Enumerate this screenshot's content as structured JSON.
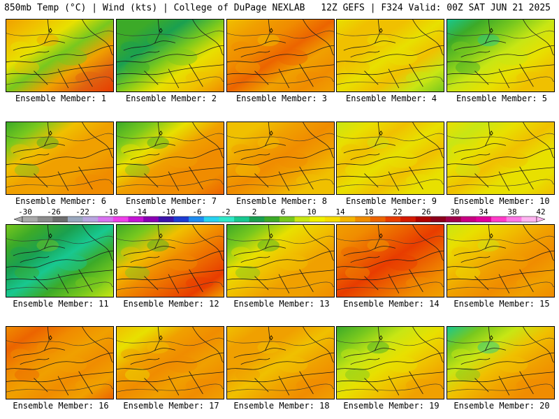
{
  "header": {
    "left": "850mb Temp (°C) | Wind (kts) | College of DuPage NEXLAB",
    "right": "12Z GEFS | F324 Valid: 00Z SAT JUN 21 2025"
  },
  "colorbar": {
    "labels": [
      "-30",
      "-26",
      "-22",
      "-18",
      "-14",
      "-10",
      "-6",
      "-2",
      "2",
      "6",
      "10",
      "14",
      "18",
      "22",
      "26",
      "30",
      "34",
      "38",
      "42"
    ],
    "colors": [
      "#aaaaaa",
      "#8c8c8c",
      "#6e6e6e",
      "#9aa8be",
      "#b9a6e0",
      "#d873f0",
      "#ee40e9",
      "#c414d4",
      "#8a00b4",
      "#3c14aa",
      "#1e3cd2",
      "#1e8cf0",
      "#28d2f0",
      "#30e8c8",
      "#18c890",
      "#1aa050",
      "#3caa28",
      "#78c81e",
      "#c8e614",
      "#f0f000",
      "#f6dc00",
      "#f4b400",
      "#f08c00",
      "#ec6400",
      "#e83c00",
      "#d41a00",
      "#b00000",
      "#8c001c",
      "#a0004a",
      "#c80082",
      "#e0009c",
      "#ff3cc8",
      "#ff78e6",
      "#ffb4f0"
    ]
  },
  "members": [
    {
      "label": "Ensemble Member: 1",
      "palette": [
        "#f0a000",
        "#f0c000",
        "#e8e000",
        "#78c81e",
        "#f0a000",
        "#e06010",
        "#e83c00"
      ]
    },
    {
      "label": "Ensemble Member: 2",
      "palette": [
        "#3caa28",
        "#3caa28",
        "#1aa050",
        "#78c81e",
        "#e8e000",
        "#f0c000",
        "#f08c00"
      ]
    },
    {
      "label": "Ensemble Member: 3",
      "palette": [
        "#f0c000",
        "#f0a000",
        "#f08c00",
        "#ec6400",
        "#f0a000",
        "#f08c00",
        "#f0a000"
      ]
    },
    {
      "label": "Ensemble Member: 4",
      "palette": [
        "#e8e000",
        "#f0c000",
        "#f0c000",
        "#e8e000",
        "#f0c000",
        "#c8e614",
        "#78c81e"
      ]
    },
    {
      "label": "Ensemble Member: 5",
      "palette": [
        "#18c890",
        "#3caa28",
        "#78c81e",
        "#c8e614",
        "#e8e000",
        "#f0c000",
        "#f0c000"
      ]
    },
    {
      "label": "Ensemble Member: 6",
      "palette": [
        "#3caa28",
        "#78c81e",
        "#f0c000",
        "#f0a000",
        "#f0a000",
        "#f08c00",
        "#f08c00"
      ]
    },
    {
      "label": "Ensemble Member: 7",
      "palette": [
        "#3caa28",
        "#78c81e",
        "#e8e000",
        "#f0a000",
        "#f08c00",
        "#f08c00",
        "#ec6400"
      ]
    },
    {
      "label": "Ensemble Member: 8",
      "palette": [
        "#f0c000",
        "#f0c000",
        "#f0a000",
        "#f08c00",
        "#f0a000",
        "#f0c000",
        "#f0c000"
      ]
    },
    {
      "label": "Ensemble Member: 9",
      "palette": [
        "#c8e614",
        "#e8e000",
        "#f0c000",
        "#e8e000",
        "#f0c000",
        "#e8e000",
        "#e8e000"
      ]
    },
    {
      "label": "Ensemble Member: 10",
      "palette": [
        "#e8e000",
        "#c8e614",
        "#e8e000",
        "#f0c000",
        "#e8e000",
        "#e8e000",
        "#f0c000"
      ]
    },
    {
      "label": "Ensemble Member: 11",
      "palette": [
        "#78c81e",
        "#3caa28",
        "#1aa050",
        "#18c890",
        "#3caa28",
        "#78c81e",
        "#c8e614"
      ]
    },
    {
      "label": "Ensemble Member: 12",
      "palette": [
        "#3caa28",
        "#78c81e",
        "#f0c000",
        "#f08c00",
        "#ec6400",
        "#e83c00",
        "#f0a000"
      ]
    },
    {
      "label": "Ensemble Member: 13",
      "palette": [
        "#3caa28",
        "#78c81e",
        "#e8e000",
        "#f0c000",
        "#f0a000",
        "#f0a000",
        "#f08c00"
      ]
    },
    {
      "label": "Ensemble Member: 14",
      "palette": [
        "#f0a000",
        "#f08c00",
        "#ec6400",
        "#e83c00",
        "#ec6400",
        "#f08c00",
        "#f0a000"
      ]
    },
    {
      "label": "Ensemble Member: 15",
      "palette": [
        "#c8e614",
        "#e8e000",
        "#f0c000",
        "#f0a000",
        "#f08c00",
        "#f0a000",
        "#f08c00"
      ]
    },
    {
      "label": "Ensemble Member: 16",
      "palette": [
        "#f08c00",
        "#ec6400",
        "#f08c00",
        "#f0a000",
        "#f08c00",
        "#f0a000",
        "#ec6400"
      ]
    },
    {
      "label": "Ensemble Member: 17",
      "palette": [
        "#f0c000",
        "#e8e000",
        "#f0a000",
        "#f08c00",
        "#f0a000",
        "#f08c00",
        "#f0a000"
      ]
    },
    {
      "label": "Ensemble Member: 18",
      "palette": [
        "#f0c000",
        "#f0a000",
        "#f0a000",
        "#f0c000",
        "#f0a000",
        "#f08c00",
        "#f0a000"
      ]
    },
    {
      "label": "Ensemble Member: 19",
      "palette": [
        "#3caa28",
        "#78c81e",
        "#c8e614",
        "#e8e000",
        "#f0c000",
        "#f0a000",
        "#f0a000"
      ]
    },
    {
      "label": "Ensemble Member: 20",
      "palette": [
        "#18c890",
        "#78c81e",
        "#c8e614",
        "#f0c000",
        "#f0a000",
        "#f08c00",
        "#f08c00"
      ]
    }
  ]
}
